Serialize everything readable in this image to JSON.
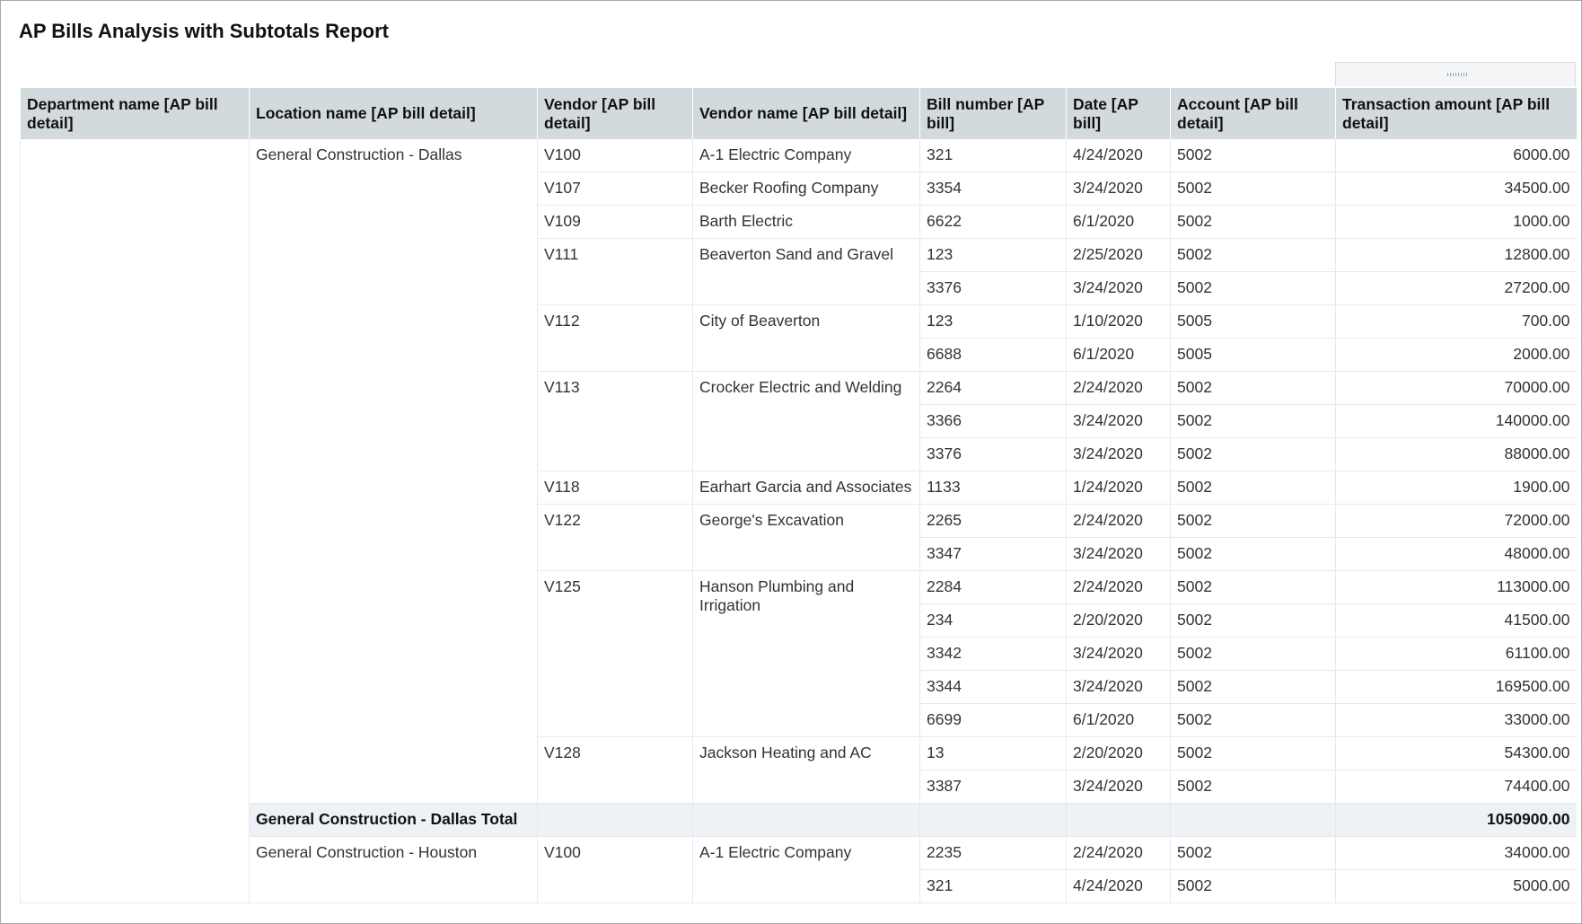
{
  "header": {
    "title": "AP Bills Analysis with Subtotals Report"
  },
  "table": {
    "columns": [
      "Department name [AP bill detail]",
      "Location name [AP bill detail]",
      "Vendor [AP bill detail]",
      "Vendor name [AP bill detail]",
      "Bill number [AP bill]",
      "Date [AP bill]",
      "Account [AP bill detail]",
      "Transaction amount [AP bill detail]"
    ],
    "locations": [
      {
        "name": "General Construction - Dallas",
        "vendors": [
          {
            "id": "V100",
            "name": "A-1 Electric Company",
            "bills": [
              {
                "number": "321",
                "date": "4/24/2020",
                "account": "5002",
                "amount": "6000.00"
              }
            ]
          },
          {
            "id": "V107",
            "name": "Becker Roofing Company",
            "bills": [
              {
                "number": "3354",
                "date": "3/24/2020",
                "account": "5002",
                "amount": "34500.00"
              }
            ]
          },
          {
            "id": "V109",
            "name": "Barth Electric",
            "bills": [
              {
                "number": "6622",
                "date": "6/1/2020",
                "account": "5002",
                "amount": "1000.00"
              }
            ]
          },
          {
            "id": "V111",
            "name": "Beaverton Sand and Gravel",
            "bills": [
              {
                "number": "123",
                "date": "2/25/2020",
                "account": "5002",
                "amount": "12800.00"
              },
              {
                "number": "3376",
                "date": "3/24/2020",
                "account": "5002",
                "amount": "27200.00"
              }
            ]
          },
          {
            "id": "V112",
            "name": "City of Beaverton",
            "bills": [
              {
                "number": "123",
                "date": "1/10/2020",
                "account": "5005",
                "amount": "700.00"
              },
              {
                "number": "6688",
                "date": "6/1/2020",
                "account": "5005",
                "amount": "2000.00"
              }
            ]
          },
          {
            "id": "V113",
            "name": "Crocker Electric and Welding",
            "bills": [
              {
                "number": "2264",
                "date": "2/24/2020",
                "account": "5002",
                "amount": "70000.00"
              },
              {
                "number": "3366",
                "date": "3/24/2020",
                "account": "5002",
                "amount": "140000.00"
              },
              {
                "number": "3376",
                "date": "3/24/2020",
                "account": "5002",
                "amount": "88000.00"
              }
            ]
          },
          {
            "id": "V118",
            "name": "Earhart Garcia and Associates",
            "bills": [
              {
                "number": "1133",
                "date": "1/24/2020",
                "account": "5002",
                "amount": "1900.00"
              }
            ]
          },
          {
            "id": "V122",
            "name": "George's Excavation",
            "bills": [
              {
                "number": "2265",
                "date": "2/24/2020",
                "account": "5002",
                "amount": "72000.00"
              },
              {
                "number": "3347",
                "date": "3/24/2020",
                "account": "5002",
                "amount": "48000.00"
              }
            ]
          },
          {
            "id": "V125",
            "name": "Hanson Plumbing and Irrigation",
            "bills": [
              {
                "number": "2284",
                "date": "2/24/2020",
                "account": "5002",
                "amount": "113000.00"
              },
              {
                "number": "234",
                "date": "2/20/2020",
                "account": "5002",
                "amount": "41500.00"
              },
              {
                "number": "3342",
                "date": "3/24/2020",
                "account": "5002",
                "amount": "61100.00"
              },
              {
                "number": "3344",
                "date": "3/24/2020",
                "account": "5002",
                "amount": "169500.00"
              },
              {
                "number": "6699",
                "date": "6/1/2020",
                "account": "5002",
                "amount": "33000.00"
              }
            ]
          },
          {
            "id": "V128",
            "name": "Jackson Heating and AC",
            "bills": [
              {
                "number": "13",
                "date": "2/20/2020",
                "account": "5002",
                "amount": "54300.00"
              },
              {
                "number": "3387",
                "date": "3/24/2020",
                "account": "5002",
                "amount": "74400.00"
              }
            ]
          }
        ],
        "total_label": "General Construction - Dallas Total",
        "total": "1050900.00"
      },
      {
        "name": "General Construction - Houston",
        "vendors": [
          {
            "id": "V100",
            "name": "A-1 Electric Company",
            "bills": [
              {
                "number": "2235",
                "date": "2/24/2020",
                "account": "5002",
                "amount": "34000.00"
              },
              {
                "number": "321",
                "date": "4/24/2020",
                "account": "5002",
                "amount": "5000.00"
              }
            ]
          }
        ]
      }
    ]
  }
}
